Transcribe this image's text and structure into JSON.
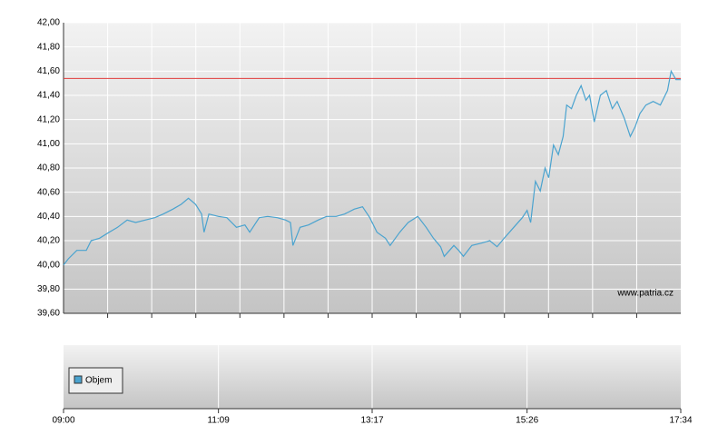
{
  "chart_data": {
    "type": "line",
    "color": "#4aa3cf",
    "x": [
      "09:00",
      "09:04",
      "09:11",
      "09:19",
      "09:23",
      "09:30",
      "09:38",
      "09:45",
      "09:53",
      "10:00",
      "10:08",
      "10:16",
      "10:23",
      "10:31",
      "10:38",
      "10:44",
      "10:50",
      "10:55",
      "10:57",
      "11:01",
      "11:09",
      "11:16",
      "11:24",
      "11:31",
      "11:35",
      "11:43",
      "11:50",
      "11:58",
      "12:05",
      "12:09",
      "12:11",
      "12:17",
      "12:24",
      "12:32",
      "12:39",
      "12:47",
      "12:54",
      "13:02",
      "13:09",
      "13:15",
      "13:21",
      "13:28",
      "13:32",
      "13:40",
      "13:47",
      "13:55",
      "14:02",
      "14:08",
      "14:14",
      "14:17",
      "14:25",
      "14:29",
      "14:33",
      "14:40",
      "14:48",
      "14:55",
      "15:01",
      "15:07",
      "15:14",
      "15:22",
      "15:26",
      "15:29",
      "15:33",
      "15:37",
      "15:41",
      "15:44",
      "15:48",
      "15:52",
      "15:56",
      "15:59",
      "16:03",
      "16:07",
      "16:11",
      "16:15",
      "16:18",
      "16:22",
      "16:27",
      "16:32",
      "16:37",
      "16:41",
      "16:47",
      "16:52",
      "16:56",
      "17:00",
      "17:05",
      "17:11",
      "17:17",
      "17:23",
      "17:26",
      "17:30",
      "17:34"
    ],
    "values": [
      40.0,
      40.05,
      40.12,
      40.12,
      40.2,
      40.22,
      40.27,
      40.31,
      40.37,
      40.35,
      40.37,
      40.39,
      40.42,
      40.46,
      40.5,
      40.55,
      40.5,
      40.42,
      40.27,
      40.42,
      40.4,
      40.39,
      40.31,
      40.33,
      40.27,
      40.39,
      40.4,
      40.39,
      40.37,
      40.35,
      40.16,
      40.31,
      40.33,
      40.37,
      40.4,
      40.4,
      40.42,
      40.46,
      40.48,
      40.39,
      40.27,
      40.22,
      40.16,
      40.27,
      40.35,
      40.4,
      40.31,
      40.22,
      40.15,
      40.07,
      40.16,
      40.12,
      40.07,
      40.16,
      40.18,
      40.2,
      40.15,
      40.22,
      40.3,
      40.39,
      40.45,
      40.35,
      40.69,
      40.61,
      40.8,
      40.72,
      40.99,
      40.91,
      41.06,
      41.32,
      41.29,
      41.4,
      41.48,
      41.36,
      41.4,
      41.18,
      41.4,
      41.44,
      41.29,
      41.35,
      41.21,
      41.06,
      41.14,
      41.25,
      41.32,
      41.35,
      41.32,
      41.44,
      41.6,
      41.53,
      41.53
    ],
    "xlim": [
      "09:00",
      "17:34"
    ],
    "xticks": [
      "09:00",
      "11:09",
      "13:17",
      "15:26",
      "17:34"
    ],
    "ylim": [
      39.6,
      42.0
    ],
    "yticks": [
      {
        "value": 39.6,
        "label": "39,60"
      },
      {
        "value": 39.8,
        "label": "39,80"
      },
      {
        "value": 40.0,
        "label": "40,00"
      },
      {
        "value": 40.2,
        "label": "40,20"
      },
      {
        "value": 40.4,
        "label": "40,40"
      },
      {
        "value": 40.6,
        "label": "40,60"
      },
      {
        "value": 40.8,
        "label": "40,80"
      },
      {
        "value": 41.0,
        "label": "41,00"
      },
      {
        "value": 41.2,
        "label": "41,20"
      },
      {
        "value": 41.4,
        "label": "41,40"
      },
      {
        "value": 41.6,
        "label": "41,60"
      },
      {
        "value": 41.8,
        "label": "41,80"
      },
      {
        "value": 42.0,
        "label": "42,00"
      }
    ],
    "grid": true,
    "reference_line": {
      "value": 41.54,
      "color": "#e03c3c"
    },
    "watermark": "www.patria.cz",
    "volume_legend": {
      "name": "Objem",
      "color": "#4aa3cf"
    }
  }
}
